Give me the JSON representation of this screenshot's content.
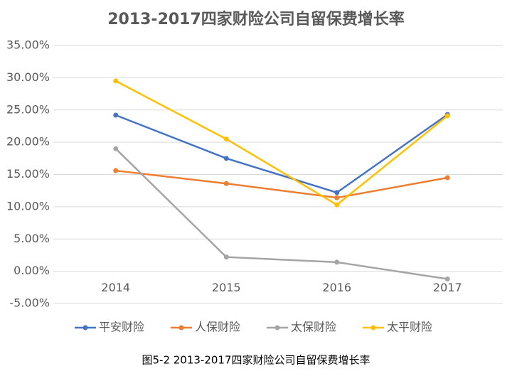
{
  "chart_data": {
    "type": "line",
    "title": "2013-2017四家财险公司自留保费增长率",
    "caption": "图5-2 2013-2017四家财险公司自留保费增长率",
    "categories": [
      "2014",
      "2015",
      "2016",
      "2017"
    ],
    "series": [
      {
        "name": "平安财险",
        "color": "#4472c4",
        "values": [
          24.2,
          17.5,
          12.2,
          24.3
        ]
      },
      {
        "name": "人保财险",
        "color": "#ed7d31",
        "values": [
          15.6,
          13.6,
          11.4,
          14.5
        ]
      },
      {
        "name": "太保财险",
        "color": "#a5a5a5",
        "values": [
          19.0,
          2.2,
          1.4,
          -1.2
        ]
      },
      {
        "name": "太平财险",
        "color": "#ffc000",
        "values": [
          29.5,
          20.5,
          10.3,
          24.1
        ]
      }
    ],
    "ylim": [
      -5,
      35
    ],
    "yticks": [
      {
        "value": -5,
        "label": "-5.00%"
      },
      {
        "value": 0,
        "label": "0.00%"
      },
      {
        "value": 5,
        "label": "5.00%"
      },
      {
        "value": 10,
        "label": "10.00%"
      },
      {
        "value": 15,
        "label": "15.00%"
      },
      {
        "value": 20,
        "label": "20.00%"
      },
      {
        "value": 25,
        "label": "25.00%"
      },
      {
        "value": 30,
        "label": "30.00%"
      },
      {
        "value": 35,
        "label": "35.00%"
      }
    ],
    "grid": true,
    "legend": "bottom"
  }
}
